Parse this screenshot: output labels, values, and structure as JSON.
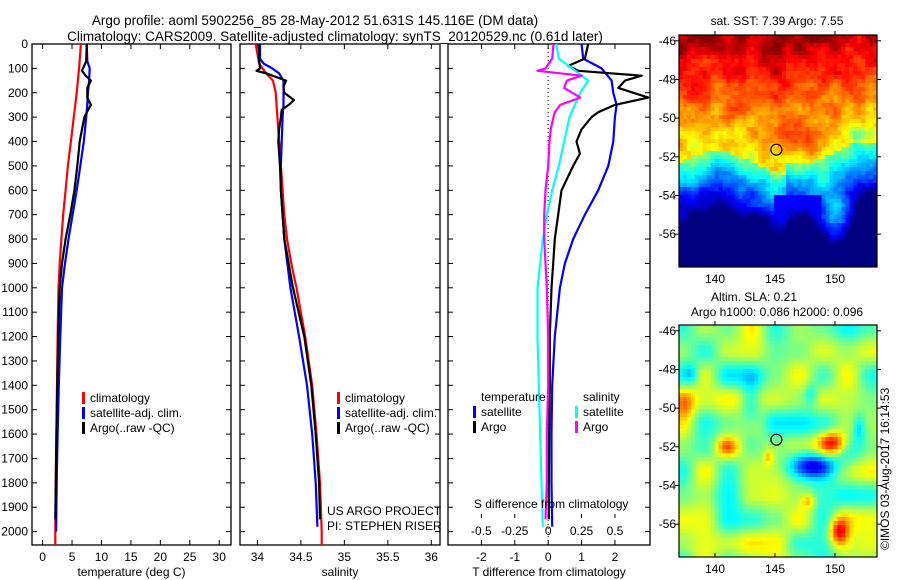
{
  "header": {
    "title_line1": "Argo profile: aoml 5902256_85 28-May-2012 51.631S 145.116E (DM data)",
    "title_line2": "Climatology: CARS2009. Satellite-adjusted climatology: synTS_20120529.nc (0.61d later)"
  },
  "colors": {
    "climatology": "#ff0000",
    "satellite": "#0000ff",
    "argo": "#000000",
    "sal_satellite": "#00ffff",
    "sal_argo": "#ff00ff"
  },
  "credit": {
    "project": "US ARGO PROJECT",
    "pi": "PI: STEPHEN RISER"
  },
  "timestamp": "©IMOS 03-Aug-2017 16:14:53",
  "chart_data": [
    {
      "id": "temperature",
      "type": "line",
      "title": "",
      "xlabel": "temperature (deg C)",
      "ylabel": "",
      "xlim": [
        -1.8,
        32
      ],
      "ylim": [
        2055,
        0
      ],
      "xticks": [
        0,
        5,
        10,
        15,
        20,
        25,
        30
      ],
      "yticks": [
        0,
        100,
        200,
        300,
        400,
        500,
        600,
        700,
        800,
        900,
        1000,
        1100,
        1200,
        1300,
        1400,
        1500,
        1600,
        1700,
        1800,
        1900,
        2000
      ],
      "legend": [
        "climatology",
        "satellite-adj. clim.",
        "Argo(..raw -QC)"
      ],
      "legend_position": "lower-middle",
      "series": [
        {
          "name": "climatology",
          "color_key": "climatology",
          "depth": [
            0,
            100,
            200,
            300,
            400,
            500,
            600,
            700,
            800,
            900,
            1000,
            1200,
            1400,
            1600,
            1800,
            2000,
            2055
          ],
          "values": [
            6.5,
            6.2,
            5.8,
            5.3,
            4.8,
            4.3,
            3.9,
            3.5,
            3.2,
            2.9,
            2.7,
            2.55,
            2.45,
            2.35,
            2.25,
            2.15,
            2.15
          ]
        },
        {
          "name": "satellite-adj. clim.",
          "color_key": "satellite",
          "depth": [
            0,
            70,
            100,
            150,
            200,
            250,
            300,
            400,
            500,
            600,
            700,
            800,
            900,
            1000,
            1200,
            1400,
            1600,
            1800,
            2000
          ],
          "values": [
            7.5,
            7.6,
            8.0,
            7.9,
            7.7,
            7.6,
            7.4,
            7.0,
            6.4,
            5.8,
            5.1,
            4.4,
            3.8,
            3.3,
            3.0,
            2.75,
            2.55,
            2.4,
            2.3
          ]
        },
        {
          "name": "Argo(..raw -QC)",
          "color_key": "argo",
          "depth": [
            0,
            70,
            110,
            130,
            150,
            180,
            220,
            250,
            280,
            300,
            350,
            400,
            500,
            600,
            700,
            800,
            900,
            1000,
            1200,
            1400,
            1600,
            1800,
            1950
          ],
          "values": [
            7.5,
            7.4,
            6.7,
            7.3,
            8.2,
            7.6,
            7.6,
            8.2,
            7.5,
            7.1,
            6.7,
            6.3,
            5.9,
            5.4,
            4.7,
            3.9,
            3.3,
            2.9,
            2.65,
            2.5,
            2.35,
            2.25,
            2.15
          ]
        }
      ]
    },
    {
      "id": "salinity",
      "type": "line",
      "title": "",
      "xlabel": "salinity",
      "ylabel": "",
      "xlim": [
        33.8,
        36.1
      ],
      "ylim": [
        2055,
        0
      ],
      "xticks": [
        34,
        34.5,
        35,
        35.5,
        36
      ],
      "legend": [
        "climatology",
        "satellite-adj. clim.",
        "Argo(..raw -QC)"
      ],
      "legend_position": "lower-middle",
      "series": [
        {
          "name": "climatology",
          "color_key": "climatology",
          "depth": [
            0,
            80,
            120,
            150,
            200,
            300,
            400,
            500,
            600,
            700,
            800,
            900,
            1000,
            1200,
            1400,
            1600,
            1800,
            2000,
            2055
          ],
          "values": [
            33.98,
            34.02,
            34.1,
            34.18,
            34.21,
            34.23,
            34.25,
            34.27,
            34.29,
            34.31,
            34.34,
            34.39,
            34.45,
            34.55,
            34.63,
            34.68,
            34.72,
            34.74,
            34.74
          ]
        },
        {
          "name": "satellite-adj. clim.",
          "color_key": "satellite",
          "depth": [
            0,
            60,
            80,
            100,
            120,
            150,
            200,
            250,
            300,
            400,
            500,
            600,
            700,
            800,
            1000,
            1200,
            1400,
            1600,
            1800,
            1980
          ],
          "values": [
            34.03,
            34.03,
            34.07,
            34.17,
            34.25,
            34.3,
            34.3,
            34.3,
            34.29,
            34.28,
            34.27,
            34.27,
            34.29,
            34.31,
            34.38,
            34.48,
            34.57,
            34.63,
            34.67,
            34.69
          ]
        },
        {
          "name": "Argo(..raw -QC)",
          "color_key": "argo",
          "depth": [
            0,
            60,
            100,
            110,
            120,
            150,
            175,
            200,
            230,
            250,
            270,
            300,
            350,
            400,
            500,
            600,
            700,
            800,
            1000,
            1200,
            1400,
            1600,
            1800,
            1950
          ],
          "values": [
            34.02,
            34.02,
            34.03,
            33.99,
            34.1,
            34.33,
            34.3,
            34.31,
            34.42,
            34.36,
            34.28,
            34.27,
            34.25,
            34.24,
            34.26,
            34.27,
            34.29,
            34.31,
            34.41,
            34.54,
            34.62,
            34.67,
            34.71,
            34.72
          ]
        }
      ]
    },
    {
      "id": "differences",
      "type": "line",
      "title": "",
      "xlabel": "T difference from climatology",
      "xlabel_secondary": "S difference from climatology",
      "ylabel": "",
      "xlim": [
        -3,
        3.05
      ],
      "ylim": [
        2055,
        0
      ],
      "xticks": [
        -2,
        -1,
        0,
        1,
        2
      ],
      "xticks_secondary": [
        -0.5,
        -0.25,
        0,
        0.25,
        0.5
      ],
      "xticks_secondary_labels": [
        "-0.5",
        "-0.25",
        "0",
        "0.25",
        "0.5"
      ],
      "legend_groups": [
        {
          "title": "temperature",
          "items": [
            "satellite",
            "Argo"
          ]
        },
        {
          "title": "salinity",
          "items": [
            "satellite",
            "Argo"
          ]
        }
      ],
      "legend_position": "lower-middle",
      "series": [
        {
          "name": "temperature satellite",
          "quantity": "T",
          "color_key": "satellite",
          "depth": [
            0,
            60,
            100,
            150,
            200,
            250,
            300,
            400,
            500,
            600,
            700,
            800,
            900,
            1000,
            1200,
            1400,
            1600,
            1800,
            1980
          ],
          "values": [
            1.0,
            1.05,
            1.6,
            1.9,
            1.95,
            2.05,
            2.0,
            1.95,
            1.8,
            1.5,
            1.1,
            0.75,
            0.5,
            0.35,
            0.2,
            0.12,
            0.1,
            0.1,
            0.12
          ]
        },
        {
          "name": "temperature Argo",
          "quantity": "T",
          "color_key": "argo",
          "depth": [
            0,
            60,
            90,
            110,
            130,
            150,
            180,
            220,
            250,
            280,
            300,
            350,
            400,
            450,
            500,
            600,
            700,
            800,
            900,
            1000,
            1200,
            1400,
            1600,
            1800,
            1950
          ],
          "values": [
            1.2,
            1.1,
            0.6,
            0.9,
            2.8,
            2.3,
            2.1,
            3.0,
            2.0,
            1.5,
            1.3,
            1.0,
            0.85,
            0.95,
            0.75,
            0.4,
            0.3,
            0.2,
            0.15,
            0.1,
            0.05,
            0.05,
            0.03,
            0.02,
            0.02
          ]
        },
        {
          "name": "salinity satellite",
          "quantity": "S",
          "color_key": "sal_satellite",
          "depth": [
            0,
            60,
            100,
            150,
            200,
            300,
            400,
            500,
            600,
            700,
            800,
            900,
            1000,
            1200,
            1400,
            1600,
            1800,
            1980
          ],
          "values": [
            0.06,
            0.08,
            0.18,
            0.3,
            0.24,
            0.16,
            0.12,
            0.08,
            0.03,
            -0.01,
            -0.04,
            -0.06,
            -0.08,
            -0.08,
            -0.07,
            -0.06,
            -0.05,
            -0.04
          ]
        },
        {
          "name": "salinity Argo",
          "quantity": "S",
          "color_key": "sal_argo",
          "depth": [
            0,
            60,
            100,
            110,
            130,
            150,
            180,
            220,
            250,
            280,
            300,
            350,
            400,
            500,
            600,
            700,
            800,
            900,
            1000,
            1200,
            1400,
            1600,
            1800,
            1950
          ],
          "values": [
            0.04,
            0.03,
            -0.02,
            -0.08,
            0.25,
            0.14,
            0.12,
            0.24,
            0.09,
            0.05,
            0.04,
            0.02,
            0.01,
            0.0,
            -0.02,
            -0.03,
            -0.03,
            -0.02,
            -0.01,
            0.0,
            0.0,
            -0.01,
            -0.01,
            -0.02
          ]
        }
      ]
    },
    {
      "id": "sst-map",
      "type": "heatmap",
      "title": "sat. SST: 7.39 Argo: 7.55",
      "xlim": [
        137,
        153.5
      ],
      "ylim": [
        -57.7,
        -45.7
      ],
      "xticks": [
        140,
        145,
        150
      ],
      "yticks": [
        -46,
        -48,
        -50,
        -52,
        -54,
        -56
      ],
      "marker": {
        "lon": 145.116,
        "lat": -51.631
      },
      "description": "warm (red/orange) north, cold (blue) south with front near 52S"
    },
    {
      "id": "sla-map",
      "type": "heatmap",
      "title": "Altim. SLA: 0.21",
      "subtitle": "Argo h1000: 0.086 h2000: 0.096",
      "xlim": [
        137,
        153.5
      ],
      "ylim": [
        -57.7,
        -45.7
      ],
      "xticks": [
        140,
        145,
        150
      ],
      "yticks": [
        -46,
        -48,
        -50,
        -52,
        -54,
        -56
      ],
      "marker": {
        "lon": 145.116,
        "lat": -51.631
      },
      "description": "mostly green/yellow with blue low near 148E 53S and red highs near 150E 51.5S and 150.5E 56.5S"
    }
  ]
}
